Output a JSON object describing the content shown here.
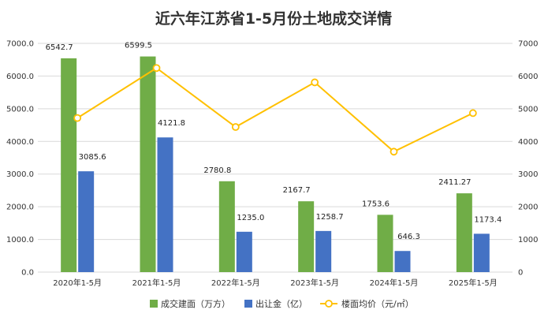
{
  "chart_data": {
    "type": "bar",
    "title": "近六年江苏省1-5月份土地成交详情",
    "categories": [
      "2020年1-5月",
      "2021年1-5月",
      "2022年1-5月",
      "2023年1-5月",
      "2024年1-5月",
      "2025年1-5月"
    ],
    "series": [
      {
        "name": "成交建面（万方）",
        "type": "bar",
        "axis": "left",
        "color": "#70ad47",
        "values": [
          6542.7,
          6599.5,
          2780.8,
          2167.7,
          1753.6,
          2411.27
        ],
        "labels": [
          "6542.7",
          "6599.5",
          "2780.8",
          "2167.7",
          "1753.6",
          "2411.27"
        ]
      },
      {
        "name": "出让金（亿）",
        "type": "bar",
        "axis": "left",
        "color": "#4472c4",
        "values": [
          3085.6,
          4121.8,
          1235.0,
          1258.7,
          646.3,
          1173.4
        ],
        "labels": [
          "3085.6",
          "4121.8",
          "1235.0",
          "1258.7",
          "646.3",
          "1173.4"
        ]
      },
      {
        "name": "楼面均价（元/㎡）",
        "type": "line",
        "axis": "right",
        "color": "#ffc000",
        "values": [
          4716,
          6246,
          4441,
          5807,
          3686,
          4866
        ]
      }
    ],
    "ylim_left": [
      0,
      7000
    ],
    "yticks_left": [
      "0.0",
      "1000.0",
      "2000.0",
      "3000.0",
      "4000.0",
      "5000.0",
      "6000.0",
      "7000.0"
    ],
    "ylim_right": [
      0,
      7000
    ],
    "yticks_right": [
      "0",
      "1000",
      "2000",
      "3000",
      "4000",
      "5000",
      "6000",
      "7000"
    ],
    "grid": true,
    "legend_position": "bottom"
  }
}
